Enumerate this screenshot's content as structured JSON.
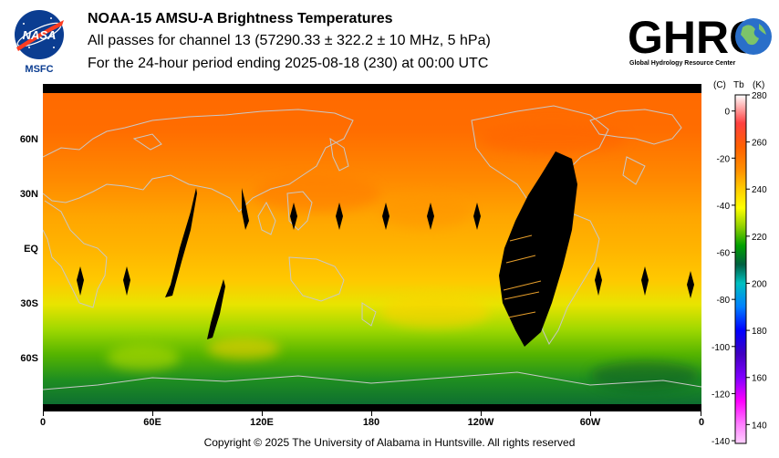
{
  "header": {
    "title": "NOAA-15 AMSU-A Brightness Temperatures",
    "subtitle_channel": "All passes for channel 13 (57290.33 ± 322.2 ± 10 MHz, 5 hPa)",
    "subtitle_period": "For the 24-hour period ending 2025-08-18 (230) at 00:00 UTC"
  },
  "logos": {
    "nasa_text": "NASA",
    "msfc_label": "MSFC",
    "ghrc_text": "GHRC",
    "ghrc_caption": "Global Hydrology Resource Center"
  },
  "map": {
    "projection": "equirectangular",
    "lat_labels": [
      "60N",
      "30N",
      "EQ",
      "30S",
      "60S"
    ],
    "lon_labels": [
      "0",
      "60E",
      "120E",
      "180",
      "120W",
      "60W",
      "0"
    ],
    "satellite": "NOAA-15",
    "instrument": "AMSU-A",
    "channel": 13
  },
  "colorbar": {
    "unit_c_label": "(C)",
    "unit_tb_label": "Tb",
    "unit_k_label": "(K)",
    "kelvin_ticks": [
      "280",
      "260",
      "240",
      "220",
      "200",
      "180",
      "160",
      "140"
    ],
    "celsius_ticks": [
      "0",
      "-20",
      "-40",
      "-60",
      "-80",
      "-100",
      "-120",
      "-140"
    ],
    "kelvin_range": [
      132,
      280
    ],
    "stops": [
      {
        "k": 280,
        "color": "#ffffff"
      },
      {
        "k": 268,
        "color": "#ff4040"
      },
      {
        "k": 258,
        "color": "#ff6000"
      },
      {
        "k": 248,
        "color": "#ff9000"
      },
      {
        "k": 240,
        "color": "#ffcc00"
      },
      {
        "k": 232,
        "color": "#ffff00"
      },
      {
        "k": 224,
        "color": "#90d000"
      },
      {
        "k": 216,
        "color": "#00a000"
      },
      {
        "k": 208,
        "color": "#006040"
      },
      {
        "k": 200,
        "color": "#00c0c0"
      },
      {
        "k": 190,
        "color": "#0080ff"
      },
      {
        "k": 180,
        "color": "#0000ff"
      },
      {
        "k": 170,
        "color": "#4000c0"
      },
      {
        "k": 160,
        "color": "#8000ff"
      },
      {
        "k": 150,
        "color": "#ff00ff"
      },
      {
        "k": 140,
        "color": "#ff80ff"
      },
      {
        "k": 132,
        "color": "#ffd0ff"
      }
    ]
  },
  "footer": {
    "copyright": "Copyright © 2025 The University of Alabama in Huntsville.  All rights reserved"
  }
}
